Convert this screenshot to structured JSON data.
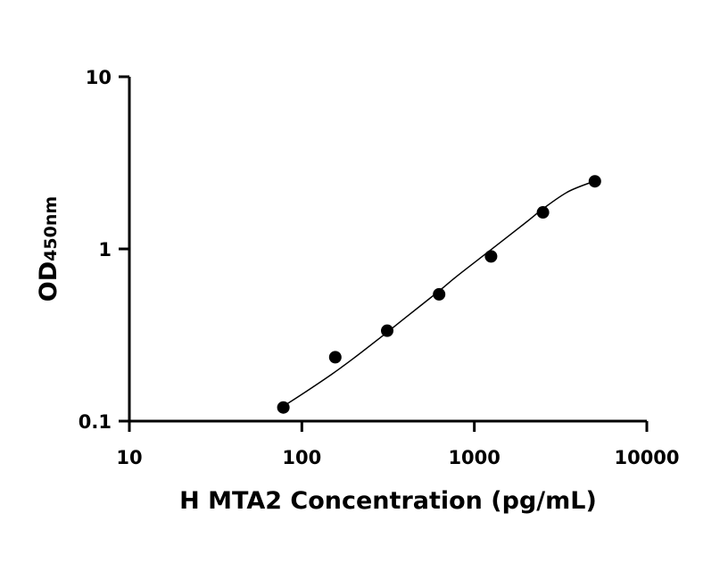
{
  "chart_data": {
    "type": "scatter",
    "title": "",
    "xlabel": "H MTA2 Concentration (pg/mL)",
    "ylabel": {
      "main": "OD",
      "sub": "450nm"
    },
    "x_scale": "log",
    "y_scale": "log",
    "xlim": [
      10,
      10000
    ],
    "ylim": [
      0.1,
      10
    ],
    "x_ticks": [
      10,
      100,
      1000,
      10000
    ],
    "x_tick_labels": [
      "10",
      "100",
      "1000",
      "10000"
    ],
    "y_ticks": [
      0.1,
      1,
      10
    ],
    "y_tick_labels": [
      "0.1",
      "1",
      "10"
    ],
    "grid": false,
    "series": [
      {
        "x": [
          78.125,
          156.25,
          312.5,
          625,
          1250,
          2500,
          5000
        ],
        "y": [
          0.12,
          0.235,
          0.335,
          0.545,
          0.905,
          1.63,
          2.47
        ],
        "marker": "filled-circle",
        "color": "#000000"
      }
    ],
    "fit_curve": {
      "type": "four-parameter-logistic",
      "color": "#000000",
      "x": [
        78.125,
        100,
        150,
        200,
        300,
        400,
        625,
        800,
        1250,
        2000,
        2500,
        3500,
        5000
      ],
      "y": [
        0.122,
        0.143,
        0.188,
        0.232,
        0.318,
        0.4,
        0.57,
        0.7,
        0.99,
        1.43,
        1.71,
        2.15,
        2.48
      ]
    }
  }
}
